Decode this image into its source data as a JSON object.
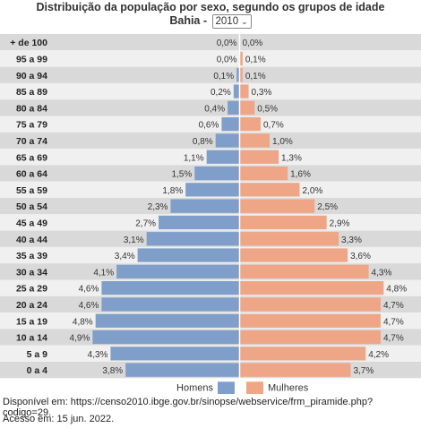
{
  "chart_data": {
    "type": "bar",
    "title": "Distribuição da população por sexo, segundo os grupos de idade",
    "region": "Bahia",
    "year": "2010",
    "categories": [
      "+ de 100",
      "95 a 99",
      "90 a 94",
      "85 a 89",
      "80 a 84",
      "75 a 79",
      "70 a 74",
      "65 a 69",
      "60 a 64",
      "55 a 59",
      "50 a 54",
      "45 a 49",
      "40 a 44",
      "35 a 39",
      "30 a 34",
      "25 a 29",
      "20 a 24",
      "15 a 19",
      "10 a 14",
      "5 a 9",
      "0 a 4"
    ],
    "series": [
      {
        "name": "Homens",
        "color": "#7f9fca",
        "values": [
          0.0,
          0.0,
          0.1,
          0.2,
          0.4,
          0.6,
          0.8,
          1.1,
          1.5,
          1.8,
          2.3,
          2.7,
          3.1,
          3.4,
          4.1,
          4.6,
          4.6,
          4.8,
          4.9,
          4.3,
          3.8
        ],
        "labels": [
          "0,0%",
          "0,0%",
          "0,1%",
          "0,2%",
          "0,4%",
          "0,6%",
          "0,8%",
          "1,1%",
          "1,5%",
          "1,8%",
          "2,3%",
          "2,7%",
          "3,1%",
          "3,4%",
          "4,1%",
          "4,6%",
          "4,6%",
          "4,8%",
          "4,9%",
          "4,3%",
          "3,8%"
        ]
      },
      {
        "name": "Mulheres",
        "color": "#eea686",
        "values": [
          0.0,
          0.1,
          0.1,
          0.3,
          0.5,
          0.7,
          1.0,
          1.3,
          1.6,
          2.0,
          2.5,
          2.9,
          3.3,
          3.6,
          4.3,
          4.8,
          4.7,
          4.7,
          4.7,
          4.2,
          3.7
        ],
        "labels": [
          "0,0%",
          "0,1%",
          "0,1%",
          "0,3%",
          "0,5%",
          "0,7%",
          "1,0%",
          "1,3%",
          "1,6%",
          "2,0%",
          "2,5%",
          "2,9%",
          "3,3%",
          "3,6%",
          "4,3%",
          "4,8%",
          "4,7%",
          "4,7%",
          "4,7%",
          "4,2%",
          "3,7%"
        ]
      }
    ],
    "legend_position": "bottom-center",
    "row_stripes": [
      "#d9d9d9",
      "#f0f0f0"
    ]
  },
  "region_label": "Bahia -",
  "source_text": "Disponível em: https://censo2010.ibge.gov.br/sinopse/webservice/frm_piramide.php?codigo=29.",
  "access_text": "Acesso em: 15 jun. 2022."
}
